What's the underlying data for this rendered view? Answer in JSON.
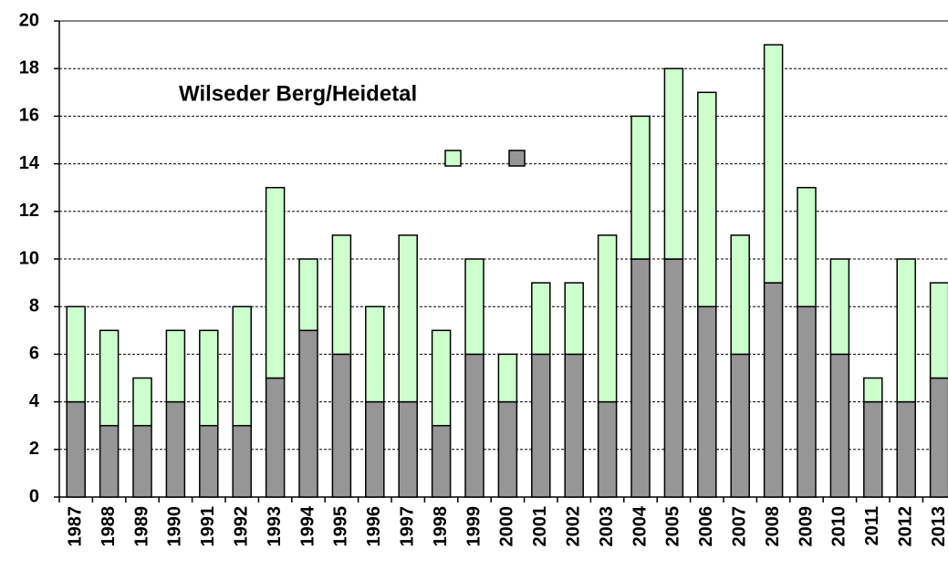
{
  "chart_data": {
    "type": "stacked-bar",
    "title": "Wilseder Berg/Heidetal",
    "categories": [
      "1987",
      "1988",
      "1989",
      "1990",
      "1991",
      "1992",
      "1993",
      "1994",
      "1995",
      "1996",
      "1997",
      "1998",
      "1999",
      "2000",
      "2001",
      "2002",
      "2003",
      "2004",
      "2005",
      "2006",
      "2007",
      "2008",
      "2009",
      "2010",
      "2011",
      "2012",
      "2013"
    ],
    "series": [
      {
        "color": "#969696",
        "values": [
          4,
          3,
          3,
          4,
          3,
          3,
          5,
          7,
          6,
          4,
          4,
          3,
          6,
          4,
          6,
          6,
          4,
          10,
          10,
          8,
          6,
          9,
          8,
          6,
          4,
          4,
          5
        ]
      },
      {
        "color": "#ccffcc",
        "values": [
          4,
          4,
          2,
          3,
          4,
          5,
          8,
          3,
          5,
          4,
          7,
          4,
          4,
          2,
          3,
          3,
          7,
          6,
          8,
          9,
          5,
          10,
          5,
          4,
          1,
          6,
          4
        ]
      }
    ],
    "ylim": [
      0,
      20
    ],
    "yticks": [
      0,
      2,
      4,
      6,
      8,
      10,
      12,
      14,
      16,
      18,
      20
    ],
    "grid": true,
    "legend": "top"
  }
}
